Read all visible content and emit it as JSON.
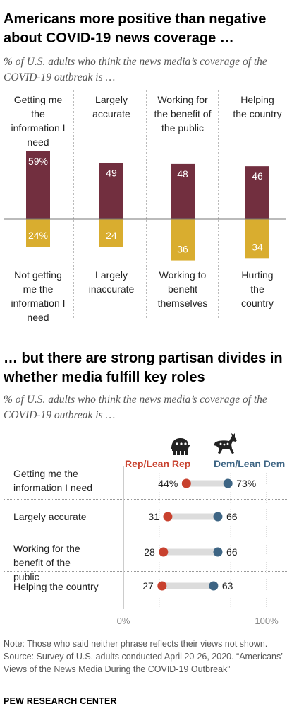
{
  "title1": "Americans more positive than negative about COVID-19 news coverage …",
  "subtitle1": "% of U.S. adults who think the news media’s coverage of the COVID-19 outbreak is …",
  "title2": "… but there are strong partisan divides in whether media fulfill key roles",
  "subtitle2": "% of U.S. adults who think the news media’s coverage of the COVID-19 outbreak is …",
  "legend": {
    "rep": "Rep/Lean Rep",
    "dem": "Dem/Lean Dem"
  },
  "colors": {
    "positive": "#722F3F",
    "negative": "#D9AD2F",
    "rep": "#C8412E",
    "dem": "#3E6584",
    "track": "#DCDCDC"
  },
  "chart_data": [
    {
      "type": "bar",
      "categories": [
        "Getting me the information I need",
        "Largely accurate",
        "Working for the benefit of the public",
        "Helping the country"
      ],
      "negative_categories": [
        "Not getting me the information I need",
        "Largely inaccurate",
        "Working to benefit themselves",
        "Hurting the country"
      ],
      "series": [
        {
          "values": [
            59,
            49,
            48,
            46
          ],
          "labels": [
            "59%",
            "49",
            "48",
            "46"
          ]
        },
        {
          "values": [
            24,
            24,
            36,
            34
          ],
          "labels": [
            "24%",
            "24",
            "36",
            "34"
          ]
        }
      ]
    },
    {
      "type": "scatter",
      "categories": [
        "Getting me the information I need",
        "Largely accurate",
        "Working for the benefit of the public",
        "Helping the country"
      ],
      "series": [
        {
          "name": "Rep/Lean Rep",
          "values": [
            44,
            31,
            28,
            27
          ],
          "labels": [
            "44%",
            "31",
            "28",
            "27"
          ]
        },
        {
          "name": "Dem/Lean Dem",
          "values": [
            73,
            66,
            66,
            63
          ],
          "labels": [
            "73%",
            "66",
            "66",
            "63"
          ]
        }
      ],
      "xlim": [
        0,
        100
      ],
      "x_tick_labels": [
        "0%",
        "100%"
      ]
    }
  ],
  "note": "Note: Those who said neither phrase reflects their views not shown.",
  "source": "Source: Survey of U.S. adults conducted April 20-26, 2020. “Americans’ Views of the News Media During the COVID-19 Outbreak”",
  "brand": "PEW RESEARCH CENTER"
}
